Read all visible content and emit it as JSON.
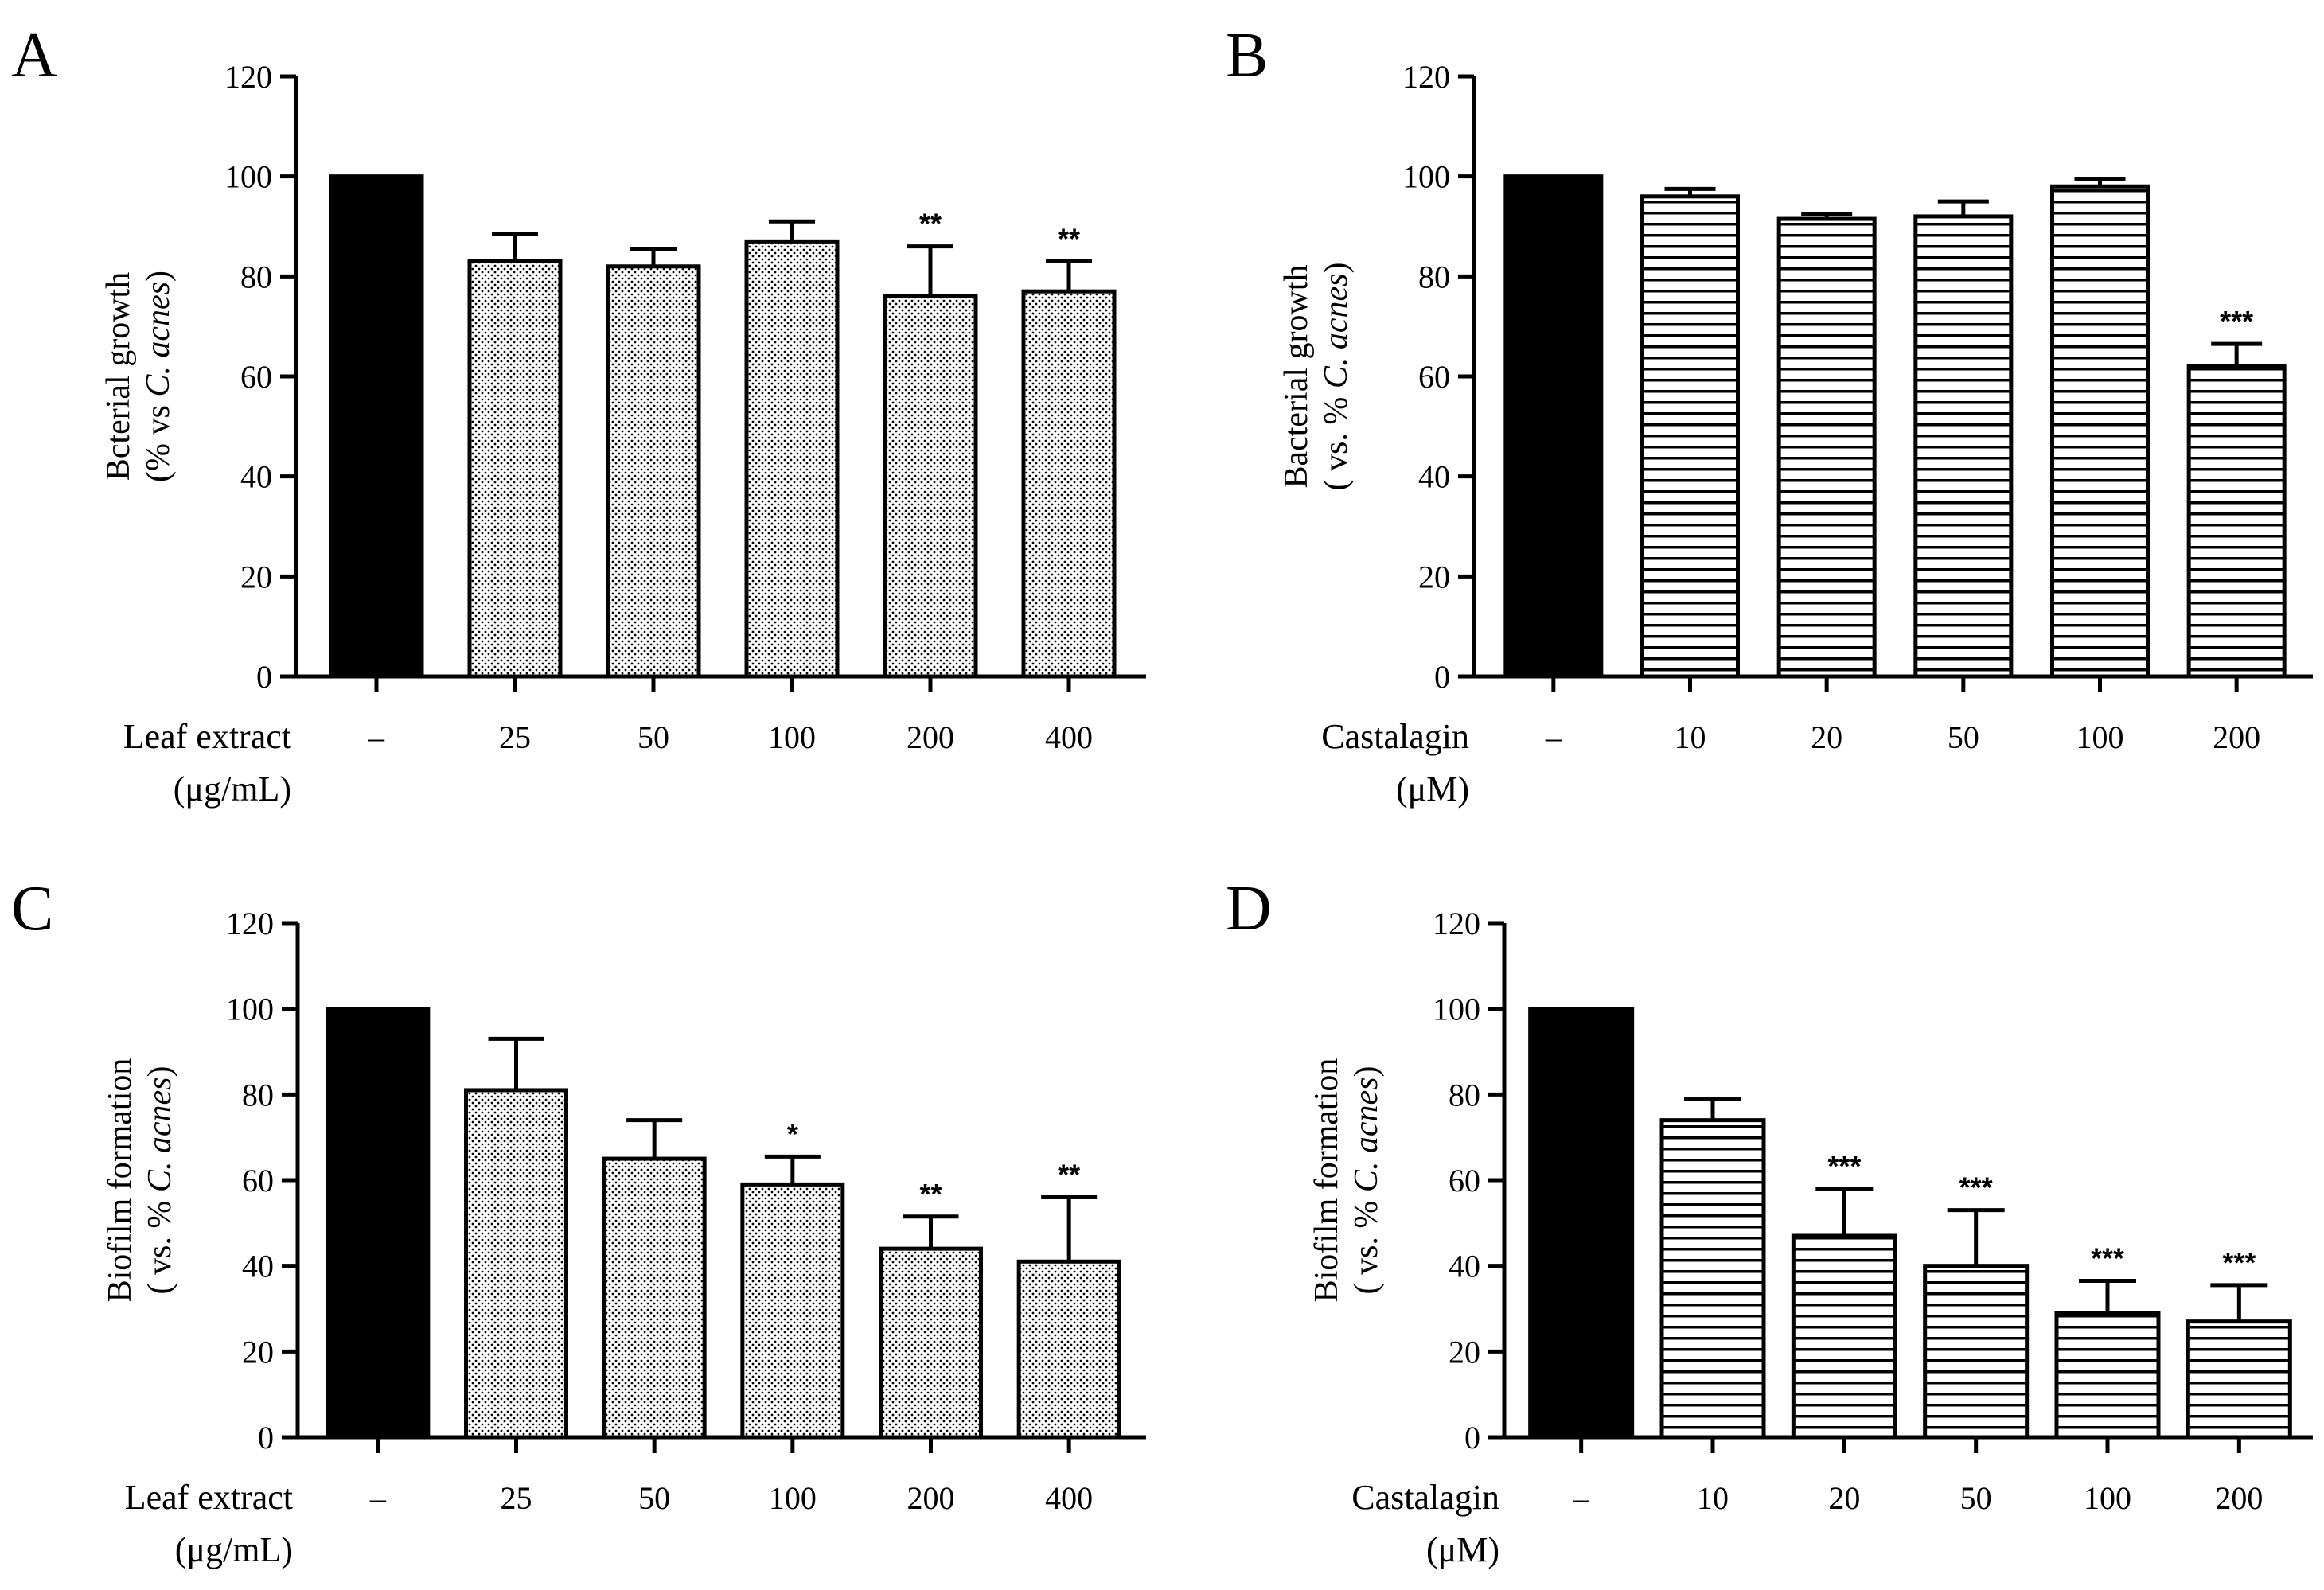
{
  "chart_data": [
    {
      "panel": "A",
      "type": "bar",
      "pattern": "dots",
      "ylabel_line1": "Bcterial growth",
      "ylabel_line2": "(% vs C. acnes)",
      "ylim": [
        0,
        120
      ],
      "yticks": [
        "0",
        "20",
        "40",
        "60",
        "80",
        "100",
        "120"
      ],
      "x_title_line1": "Leaf extract",
      "x_title_line2": "(μg/mL)",
      "categories": [
        "–",
        "25",
        "50",
        "100",
        "200",
        "400"
      ],
      "values": [
        100,
        83,
        82,
        87,
        76,
        77
      ],
      "errors": [
        0,
        5.5,
        3.5,
        4,
        10,
        6
      ],
      "significance": [
        "",
        "",
        "",
        "",
        "**",
        "**"
      ]
    },
    {
      "panel": "B",
      "type": "bar",
      "pattern": "stripes",
      "ylabel_line1": "Bacterial growth",
      "ylabel_line2": "( vs. % C. acnes)",
      "ylim": [
        0,
        120
      ],
      "yticks": [
        "0",
        "20",
        "40",
        "60",
        "80",
        "100",
        "120"
      ],
      "x_title_line1": "Castalagin",
      "x_title_line2": "(μM)",
      "categories": [
        "–",
        "10",
        "20",
        "50",
        "100",
        "200"
      ],
      "values": [
        100,
        96,
        91.5,
        92,
        98,
        62
      ],
      "errors": [
        0,
        1.5,
        1,
        3,
        1.5,
        4.5
      ],
      "significance": [
        "",
        "",
        "",
        "",
        "",
        "***"
      ]
    },
    {
      "panel": "C",
      "type": "bar",
      "pattern": "dots",
      "ylabel_line1": "Biofilm formation",
      "ylabel_line2": "( vs. % C. acnes)",
      "ylim": [
        0,
        120
      ],
      "yticks": [
        "0",
        "20",
        "40",
        "60",
        "80",
        "100",
        "120"
      ],
      "x_title_line1": "Leaf extract",
      "x_title_line2": "(μg/mL)",
      "categories": [
        "–",
        "25",
        "50",
        "100",
        "200",
        "400"
      ],
      "values": [
        100,
        81,
        65,
        59,
        44,
        41
      ],
      "errors": [
        0,
        12,
        9,
        6.5,
        7.5,
        15
      ],
      "significance": [
        "",
        "",
        "",
        "*",
        "**",
        "**"
      ]
    },
    {
      "panel": "D",
      "type": "bar",
      "pattern": "stripes",
      "ylabel_line1": "Biofilm formation",
      "ylabel_line2": "( vs. % C. acnes)",
      "ylim": [
        0,
        120
      ],
      "yticks": [
        "0",
        "20",
        "40",
        "60",
        "80",
        "100",
        "120"
      ],
      "x_title_line1": "Castalagin",
      "x_title_line2": "(μM)",
      "categories": [
        "–",
        "10",
        "20",
        "50",
        "100",
        "200"
      ],
      "values": [
        100,
        74,
        47,
        40,
        29,
        27
      ],
      "errors": [
        0,
        5,
        11,
        13,
        7.5,
        8.5
      ],
      "significance": [
        "",
        "",
        "***",
        "***",
        "***",
        "***"
      ]
    }
  ]
}
